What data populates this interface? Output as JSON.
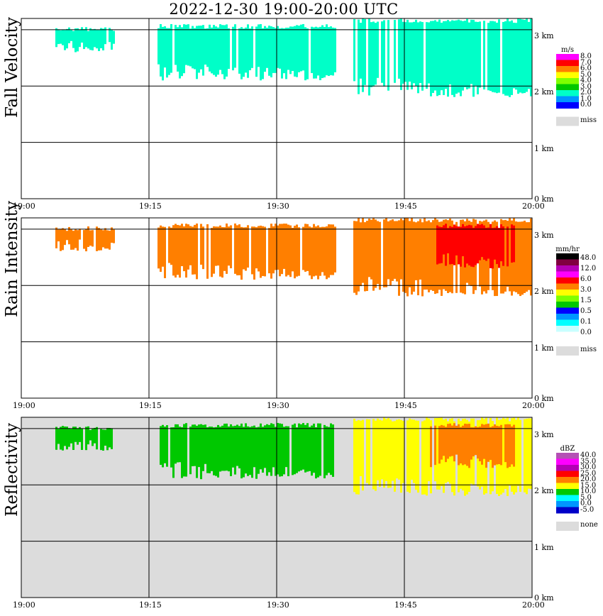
{
  "title": "2022-12-30   19:00-20:00 UTC",
  "x_ticks": [
    "19:00",
    "19:15",
    "19:30",
    "19:45",
    "20:00"
  ],
  "y_ticks": [
    "0 km",
    "1 km",
    "2 km",
    "3 km"
  ],
  "chart_data": [
    {
      "type": "heatmap",
      "title": "2022-12-30   19:00-20:00 UTC",
      "ylabel": "Fall Velocity",
      "xlabel": "",
      "xlim": [
        "19:00",
        "20:00"
      ],
      "ylim": [
        0,
        3.2
      ],
      "y_unit": "km",
      "grid": true,
      "colorbar": {
        "unit": "m/s",
        "labels": [
          "8.0",
          "7.0",
          "6.0",
          "5.0",
          "4.0",
          "3.0",
          "2.0",
          "1.0",
          "0.0",
          "miss"
        ],
        "colors": [
          "#ff00ff",
          "#ff0000",
          "#ff7f00",
          "#ffff00",
          "#7fff00",
          "#00c800",
          "#00ffc8",
          "#0096ff",
          "#0000ff",
          "#dcdcdc"
        ]
      },
      "echo_regions": [
        {
          "t_start": "19:04",
          "t_end": "19:11",
          "base_km": 2.6,
          "top_km": 3.05,
          "value": 2.0
        },
        {
          "t_start": "19:16",
          "t_end": "19:37",
          "base_km": 2.1,
          "top_km": 3.1,
          "value": 2.0
        },
        {
          "t_start": "19:39",
          "t_end": "20:00",
          "base_km": 1.8,
          "top_km": 3.2,
          "value": 2.0
        }
      ]
    },
    {
      "type": "heatmap",
      "ylabel": "Rain Intensity",
      "xlabel": "",
      "xlim": [
        "19:00",
        "20:00"
      ],
      "ylim": [
        0,
        3.2
      ],
      "y_unit": "km",
      "grid": true,
      "colorbar": {
        "unit": "mm/hr",
        "labels": [
          "48.0",
          "12.0",
          "6.0",
          "3.0",
          "1.5",
          "0.5",
          "0.1",
          "0.0",
          "miss"
        ],
        "colors": [
          "#000000",
          "#800040",
          "#b400b4",
          "#ff00ff",
          "#ff0000",
          "#ff7f00",
          "#ffff00",
          "#7fff00",
          "#00c800",
          "#0000ff",
          "#0096ff",
          "#00ffff",
          "#c8ffff",
          "#ffffff",
          "#dcdcdc"
        ]
      },
      "echo_regions": [
        {
          "t_start": "19:04",
          "t_end": "19:11",
          "base_km": 2.6,
          "top_km": 3.05,
          "value": 0.5
        },
        {
          "t_start": "19:16",
          "t_end": "19:37",
          "base_km": 2.1,
          "top_km": 3.1,
          "value": 0.5
        },
        {
          "t_start": "19:39",
          "t_end": "20:00",
          "base_km": 1.8,
          "top_km": 3.2,
          "value": 0.5
        },
        {
          "t_start": "19:48",
          "t_end": "19:58",
          "base_km": 2.3,
          "top_km": 3.1,
          "value": 1.5
        }
      ]
    },
    {
      "type": "heatmap",
      "ylabel": "Reflectivity",
      "xlabel": "",
      "xlim": [
        "19:00",
        "20:00"
      ],
      "ylim": [
        0,
        3.2
      ],
      "y_unit": "km",
      "grid": true,
      "colorbar": {
        "unit": "dBZ",
        "labels": [
          "40.0",
          "35.0",
          "30.0",
          "25.0",
          "20.0",
          "15.0",
          "10.0",
          "5.0",
          "0.0",
          "-5.0",
          "none"
        ],
        "colors": [
          "#b450b4",
          "#ff00ff",
          "#b400b4",
          "#ff0000",
          "#ff7f00",
          "#ffff00",
          "#00c800",
          "#00ffff",
          "#0096ff",
          "#0000c8",
          "#dcdcdc"
        ]
      },
      "echo_regions": [
        {
          "t_start": "19:04",
          "t_end": "19:11",
          "base_km": 2.6,
          "top_km": 3.05,
          "value": 10.0
        },
        {
          "t_start": "19:16",
          "t_end": "19:37",
          "base_km": 2.1,
          "top_km": 3.1,
          "value": 10.0
        },
        {
          "t_start": "19:39",
          "t_end": "20:00",
          "base_km": 1.8,
          "top_km": 3.2,
          "value": 15.0
        },
        {
          "t_start": "19:48",
          "t_end": "19:58",
          "base_km": 2.3,
          "top_km": 3.1,
          "value": 20.0
        }
      ]
    }
  ]
}
